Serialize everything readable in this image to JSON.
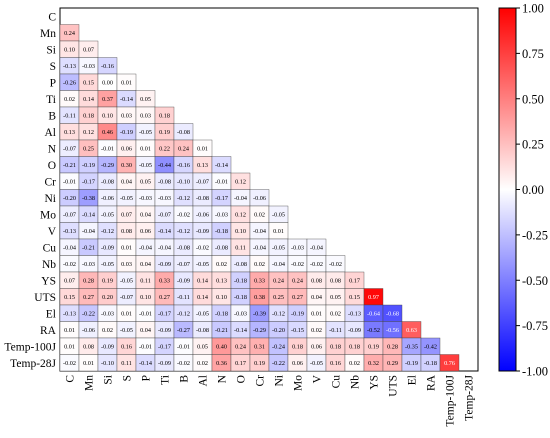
{
  "chart_data": {
    "type": "heatmap",
    "layout": "lower-triangle",
    "title": "",
    "xlabel": "",
    "ylabel": "",
    "labels": [
      "C",
      "Mn",
      "Si",
      "S",
      "P",
      "Ti",
      "B",
      "Al",
      "N",
      "O",
      "Cr",
      "Ni",
      "Mo",
      "V",
      "Cu",
      "Nb",
      "YS",
      "UTS",
      "El",
      "RA",
      "Temp-100J",
      "Temp-28J"
    ],
    "values": [
      [
        0.24
      ],
      [
        0.1,
        0.07
      ],
      [
        -0.13,
        -0.03,
        -0.16
      ],
      [
        -0.26,
        0.15,
        0.0,
        0.01
      ],
      [
        0.02,
        0.14,
        0.37,
        -0.14,
        0.05
      ],
      [
        -0.11,
        0.18,
        0.1,
        0.03,
        0.03,
        0.18
      ],
      [
        0.13,
        0.12,
        0.46,
        -0.19,
        -0.05,
        0.19,
        -0.08
      ],
      [
        -0.07,
        0.25,
        -0.01,
        0.06,
        0.01,
        0.22,
        0.24,
        0.01
      ],
      [
        -0.21,
        -0.19,
        -0.29,
        0.3,
        -0.05,
        -0.44,
        -0.16,
        0.13,
        -0.14
      ],
      [
        -0.01,
        -0.17,
        -0.08,
        0.04,
        0.05,
        -0.08,
        -0.1,
        -0.07,
        -0.01,
        0.12
      ],
      [
        -0.2,
        -0.38,
        -0.06,
        -0.05,
        -0.03,
        -0.03,
        -0.12,
        -0.08,
        -0.17,
        -0.04,
        -0.06
      ],
      [
        -0.07,
        -0.14,
        -0.05,
        0.07,
        0.04,
        -0.07,
        -0.02,
        -0.06,
        -0.03,
        0.12,
        0.02,
        -0.05
      ],
      [
        -0.13,
        -0.04,
        -0.12,
        0.08,
        0.06,
        -0.14,
        -0.12,
        -0.09,
        -0.18,
        0.1,
        -0.04,
        0.01
      ],
      [
        -0.04,
        -0.21,
        -0.09,
        0.01,
        -0.04,
        -0.04,
        -0.08,
        -0.02,
        -0.08,
        0.11,
        -0.04,
        -0.05,
        -0.03,
        -0.04
      ],
      [
        -0.02,
        -0.03,
        -0.05,
        0.03,
        0.04,
        -0.09,
        -0.07,
        -0.05,
        0.02,
        -0.08,
        0.02,
        -0.04,
        -0.02,
        -0.02,
        -0.02
      ],
      [
        0.07,
        0.28,
        0.19,
        -0.05,
        0.11,
        0.33,
        -0.09,
        0.14,
        0.13,
        -0.18,
        0.33,
        0.24,
        0.24,
        0.08,
        0.08,
        0.17
      ],
      [
        0.15,
        0.27,
        0.2,
        -0.07,
        0.1,
        0.27,
        -0.11,
        0.14,
        0.1,
        -0.18,
        0.38,
        0.25,
        0.27,
        0.04,
        0.05,
        0.15,
        0.97
      ],
      [
        -0.13,
        -0.22,
        -0.03,
        0.01,
        -0.01,
        -0.17,
        -0.12,
        -0.05,
        -0.18,
        -0.03,
        -0.39,
        -0.12,
        -0.19,
        0.01,
        0.02,
        -0.13,
        -0.64,
        -0.68
      ],
      [
        0.01,
        -0.06,
        0.02,
        -0.05,
        0.04,
        -0.09,
        -0.27,
        -0.08,
        -0.21,
        -0.14,
        -0.29,
        -0.2,
        -0.15,
        0.02,
        -0.11,
        -0.09,
        -0.52,
        -0.56,
        0.63
      ],
      [
        0.01,
        0.08,
        -0.09,
        0.16,
        -0.01,
        -0.17,
        -0.01,
        0.05,
        0.4,
        0.24,
        0.31,
        -0.24,
        0.18,
        0.06,
        0.18,
        0.18,
        0.19,
        0.28,
        -0.35,
        -0.42
      ],
      [
        -0.02,
        0.01,
        -0.1,
        0.11,
        -0.14,
        -0.09,
        -0.02,
        0.02,
        0.36,
        0.17,
        0.19,
        -0.22,
        0.06,
        -0.05,
        0.16,
        0.02,
        0.32,
        0.29,
        -0.19,
        -0.18,
        0.76
      ]
    ],
    "colorbar": {
      "min": -1.0,
      "max": 1.0,
      "ticks": [
        "1.00",
        "0.75",
        "0.50",
        "0.25",
        "0.00",
        "-0.25",
        "-0.50",
        "-0.75",
        "-1.00"
      ],
      "colors": {
        "low": "#0000ff",
        "mid": "#ffffff",
        "high": "#ff0000"
      }
    },
    "grid": true
  }
}
